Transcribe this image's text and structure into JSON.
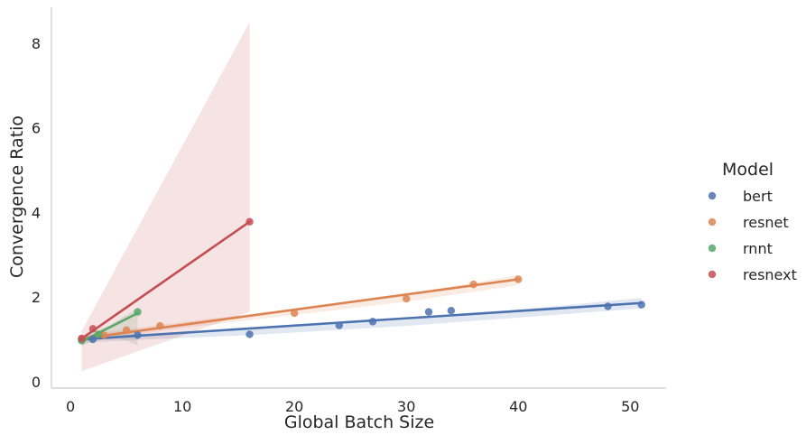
{
  "chart_data": {
    "type": "scatter",
    "title": "",
    "xlabel": "Global Batch Size",
    "ylabel": "Convergence Ratio",
    "xlim": [
      -1.7,
      53.2
    ],
    "ylim": [
      -0.15,
      8.85
    ],
    "xticks": [
      0,
      10,
      20,
      30,
      40,
      50
    ],
    "yticks": [
      0,
      2,
      4,
      6,
      8
    ],
    "grid": false,
    "legend": {
      "title": "Model",
      "position": "right"
    },
    "series": [
      {
        "name": "bert",
        "color": "#4c72b0",
        "points": [
          [
            1,
            1.0
          ],
          [
            2,
            1.0
          ],
          [
            6,
            1.1
          ],
          [
            16,
            1.12
          ],
          [
            24,
            1.33
          ],
          [
            27,
            1.42
          ],
          [
            32,
            1.65
          ],
          [
            34,
            1.68
          ],
          [
            48,
            1.78
          ],
          [
            51,
            1.82
          ]
        ],
        "fit": {
          "x": [
            1,
            51
          ],
          "y": [
            1.0,
            1.86
          ]
        },
        "band": {
          "x": [
            1,
            6,
            16,
            30,
            51
          ],
          "upper": [
            1.08,
            1.13,
            1.26,
            1.46,
            1.98
          ],
          "lower": [
            0.92,
            0.99,
            1.1,
            1.32,
            1.73
          ]
        }
      },
      {
        "name": "resnet",
        "color": "#dd8452",
        "points": [
          [
            1,
            1.02
          ],
          [
            3,
            1.1
          ],
          [
            5,
            1.22
          ],
          [
            8,
            1.32
          ],
          [
            20,
            1.62
          ],
          [
            30,
            1.96
          ],
          [
            36,
            2.3
          ],
          [
            40,
            2.42
          ]
        ],
        "fit": {
          "x": [
            1,
            40
          ],
          "y": [
            1.02,
            2.42
          ]
        },
        "band": {
          "x": [
            1,
            10,
            20,
            30,
            40
          ],
          "upper": [
            1.1,
            1.41,
            1.72,
            2.07,
            2.52
          ],
          "lower": [
            0.94,
            1.27,
            1.58,
            1.89,
            2.28
          ]
        }
      },
      {
        "name": "rnnt",
        "color": "#55a868",
        "points": [
          [
            1,
            0.97
          ],
          [
            2.5,
            1.12
          ],
          [
            6,
            1.65
          ]
        ],
        "fit": {
          "x": [
            1,
            6
          ],
          "y": [
            0.95,
            1.62
          ]
        },
        "band": {
          "x": [
            1,
            3.5,
            6
          ],
          "upper": [
            1.06,
            1.34,
            1.74
          ],
          "lower": [
            0.84,
            1.12,
            0.86
          ]
        }
      },
      {
        "name": "resnext",
        "color": "#c44e52",
        "points": [
          [
            1,
            1.02
          ],
          [
            2,
            1.25
          ],
          [
            16,
            3.78
          ]
        ],
        "fit": {
          "x": [
            1,
            16
          ],
          "y": [
            1.02,
            3.78
          ]
        },
        "band": {
          "x": [
            1,
            16
          ],
          "upper": [
            1.2,
            8.5
          ],
          "lower": [
            0.25,
            1.65
          ]
        }
      }
    ]
  }
}
